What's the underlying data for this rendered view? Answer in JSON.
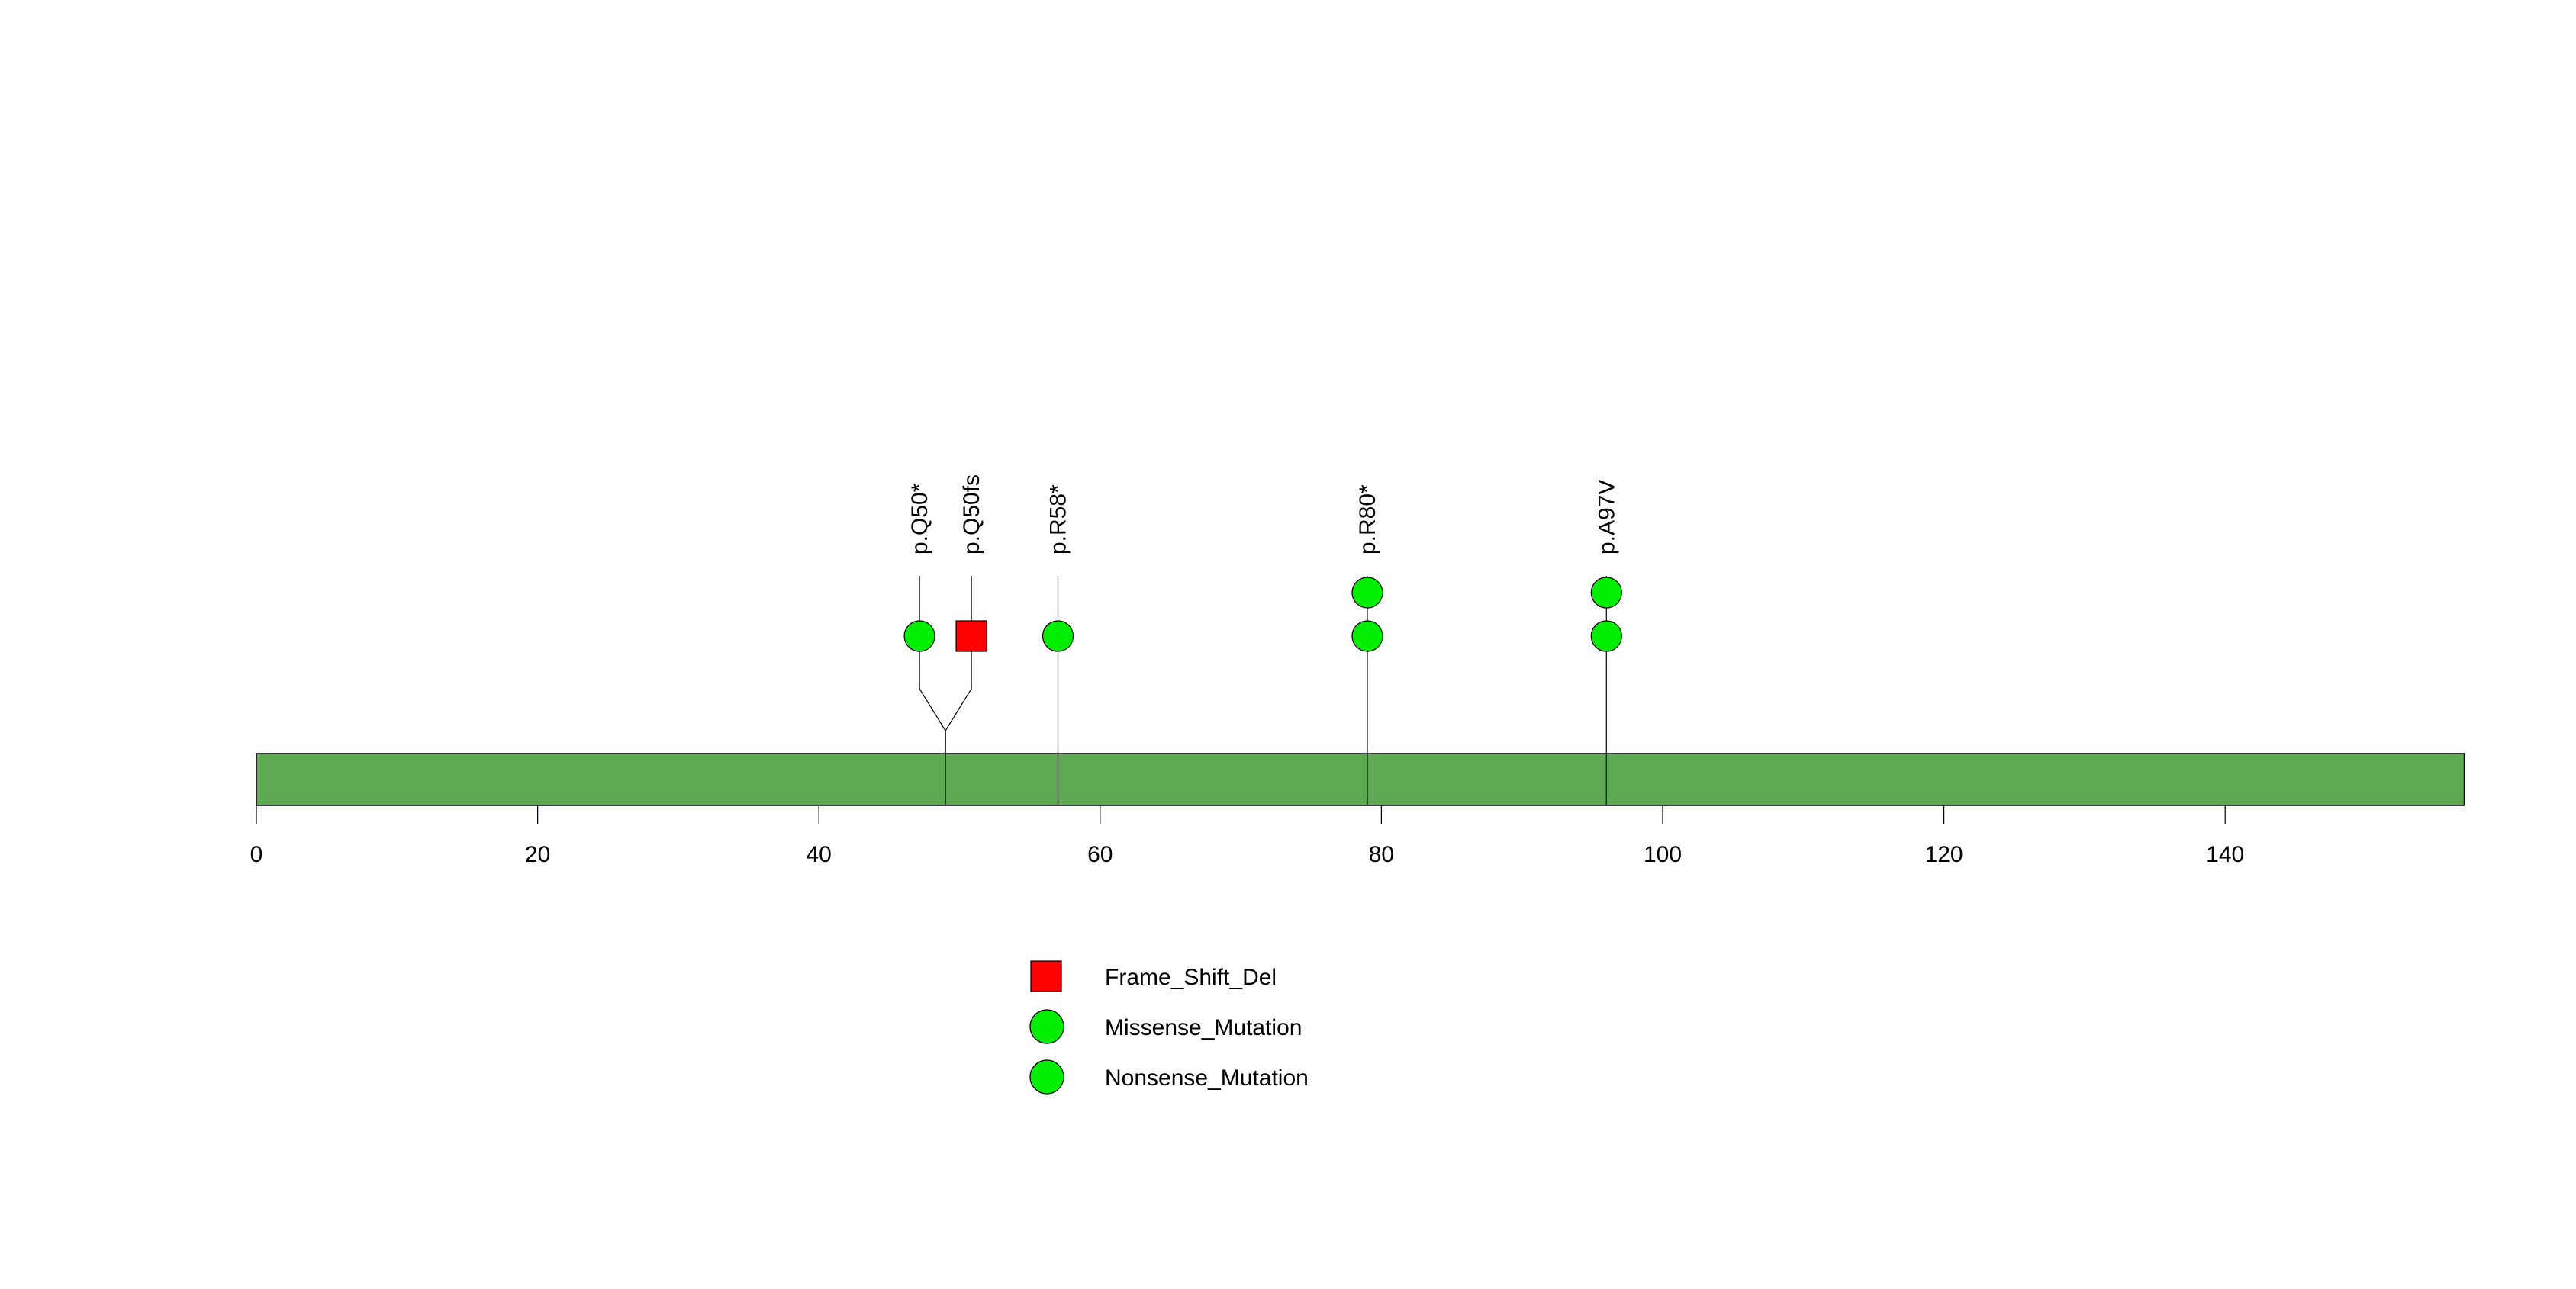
{
  "chart_data": {
    "type": "lollipop",
    "title": "",
    "xlabel": "",
    "ylabel": "",
    "xlim": [
      0,
      157
    ],
    "protein_length": 157,
    "x_ticks": [
      0,
      20,
      40,
      60,
      80,
      100,
      120,
      140
    ],
    "x_tick_labels": [
      "0",
      "20",
      "40",
      "60",
      "80",
      "100",
      "120",
      "140"
    ],
    "domain_color": "#5daa52",
    "mutations": [
      {
        "label": "p.Q50*",
        "position": 49,
        "display_offset": -1,
        "type": "Nonsense_Mutation",
        "count": 1
      },
      {
        "label": "p.Q50fs",
        "position": 49,
        "display_offset": 1,
        "type": "Frame_Shift_Del",
        "count": 1
      },
      {
        "label": "p.R58*",
        "position": 57,
        "display_offset": 0,
        "type": "Nonsense_Mutation",
        "count": 1
      },
      {
        "label": "p.R80*",
        "position": 79,
        "display_offset": 0,
        "type": "Nonsense_Mutation",
        "count": 2
      },
      {
        "label": "p.A97V",
        "position": 96,
        "display_offset": 0,
        "type": "Missense_Mutation",
        "count": 2
      }
    ],
    "legend": {
      "placement": "bottom-center",
      "entries": [
        {
          "label": "Frame_Shift_Del",
          "shape": "square",
          "color": "#ff0000"
        },
        {
          "label": "Missense_Mutation",
          "shape": "circle",
          "color": "#00ee00"
        },
        {
          "label": "Nonsense_Mutation",
          "shape": "circle",
          "color": "#00ee00"
        }
      ]
    }
  }
}
